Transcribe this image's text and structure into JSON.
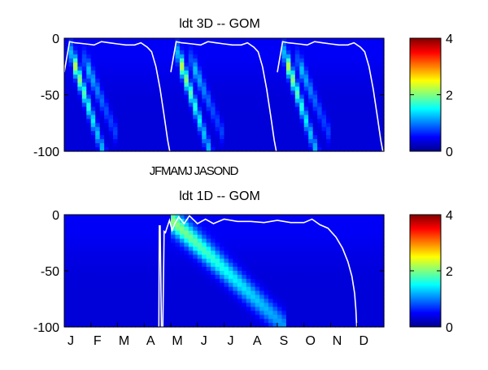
{
  "chart_data": [
    {
      "type": "heatmap",
      "title": "ldt 3D   -- GOM",
      "xlabel": "JFMAMJ JASOND",
      "ylabel": "",
      "ylim": [
        -100,
        0
      ],
      "y_ticks": [
        0,
        -50,
        -100
      ],
      "x_ticks": [],
      "colorbar": {
        "colormap": "jet",
        "min": 0,
        "max": 4,
        "ticks": [
          0,
          2,
          4
        ]
      },
      "years": 3,
      "mixed_layer_line": {
        "color": "#ffffff",
        "x": [
          0.0,
          0.05,
          0.1,
          0.2,
          0.28,
          0.35,
          0.42,
          0.5,
          0.58,
          0.66,
          0.72,
          0.78,
          0.82,
          0.86,
          0.9,
          0.94,
          0.97,
          0.99
        ],
        "y": [
          -30,
          -3,
          -4,
          -5,
          -6,
          -3,
          -4,
          -5,
          -6,
          -6,
          -4,
          -8,
          -12,
          -25,
          -45,
          -70,
          -90,
          -100
        ]
      },
      "bloom": [
        {
          "x_start": 0.08,
          "y_start": -18,
          "x_end": 0.33,
          "y_end": -90,
          "peak": 1.9
        },
        {
          "x_start": 0.2,
          "y_start": -22,
          "x_end": 0.42,
          "y_end": -70,
          "peak": 0.9
        }
      ]
    },
    {
      "type": "heatmap",
      "title": "ldt 1D   -- GOM",
      "xlabel": "",
      "ylabel": "",
      "ylim": [
        -100,
        0
      ],
      "y_ticks": [
        0,
        -50,
        -100
      ],
      "x_ticks": [
        "J",
        "F",
        "M",
        "A",
        "M",
        "J",
        "J",
        "A",
        "S",
        "O",
        "N",
        "D"
      ],
      "colorbar": {
        "colormap": "jet",
        "min": 0,
        "max": 4,
        "ticks": [
          0,
          2,
          4
        ]
      },
      "mixed_layer_line": {
        "color": "#ffffff",
        "x": [
          3.55,
          3.57,
          3.6,
          3.65,
          3.7,
          3.75,
          3.8,
          3.85,
          3.95,
          4.05,
          4.15,
          4.3,
          4.5,
          4.7,
          5.0,
          5.3,
          5.6,
          6.0,
          6.5,
          7.0,
          7.5,
          8.0,
          8.5,
          9.0,
          9.3,
          9.6,
          9.9,
          10.2,
          10.45,
          10.65,
          10.8,
          10.9,
          10.95,
          10.98
        ],
        "y": [
          -100,
          -10,
          -10,
          -100,
          -100,
          -15,
          -16,
          -12,
          -5,
          -14,
          -8,
          -2,
          -8,
          -1,
          -8,
          -4,
          -8,
          -4,
          -6,
          -6,
          -7,
          -5,
          -7,
          -7,
          -4,
          -9,
          -12,
          -20,
          -30,
          -42,
          -55,
          -70,
          -85,
          -100
        ]
      },
      "bloom": [
        {
          "x_start": 4.05,
          "y_start": -5,
          "x_end": 8.3,
          "y_end": -100,
          "peak": 1.6
        }
      ]
    }
  ]
}
